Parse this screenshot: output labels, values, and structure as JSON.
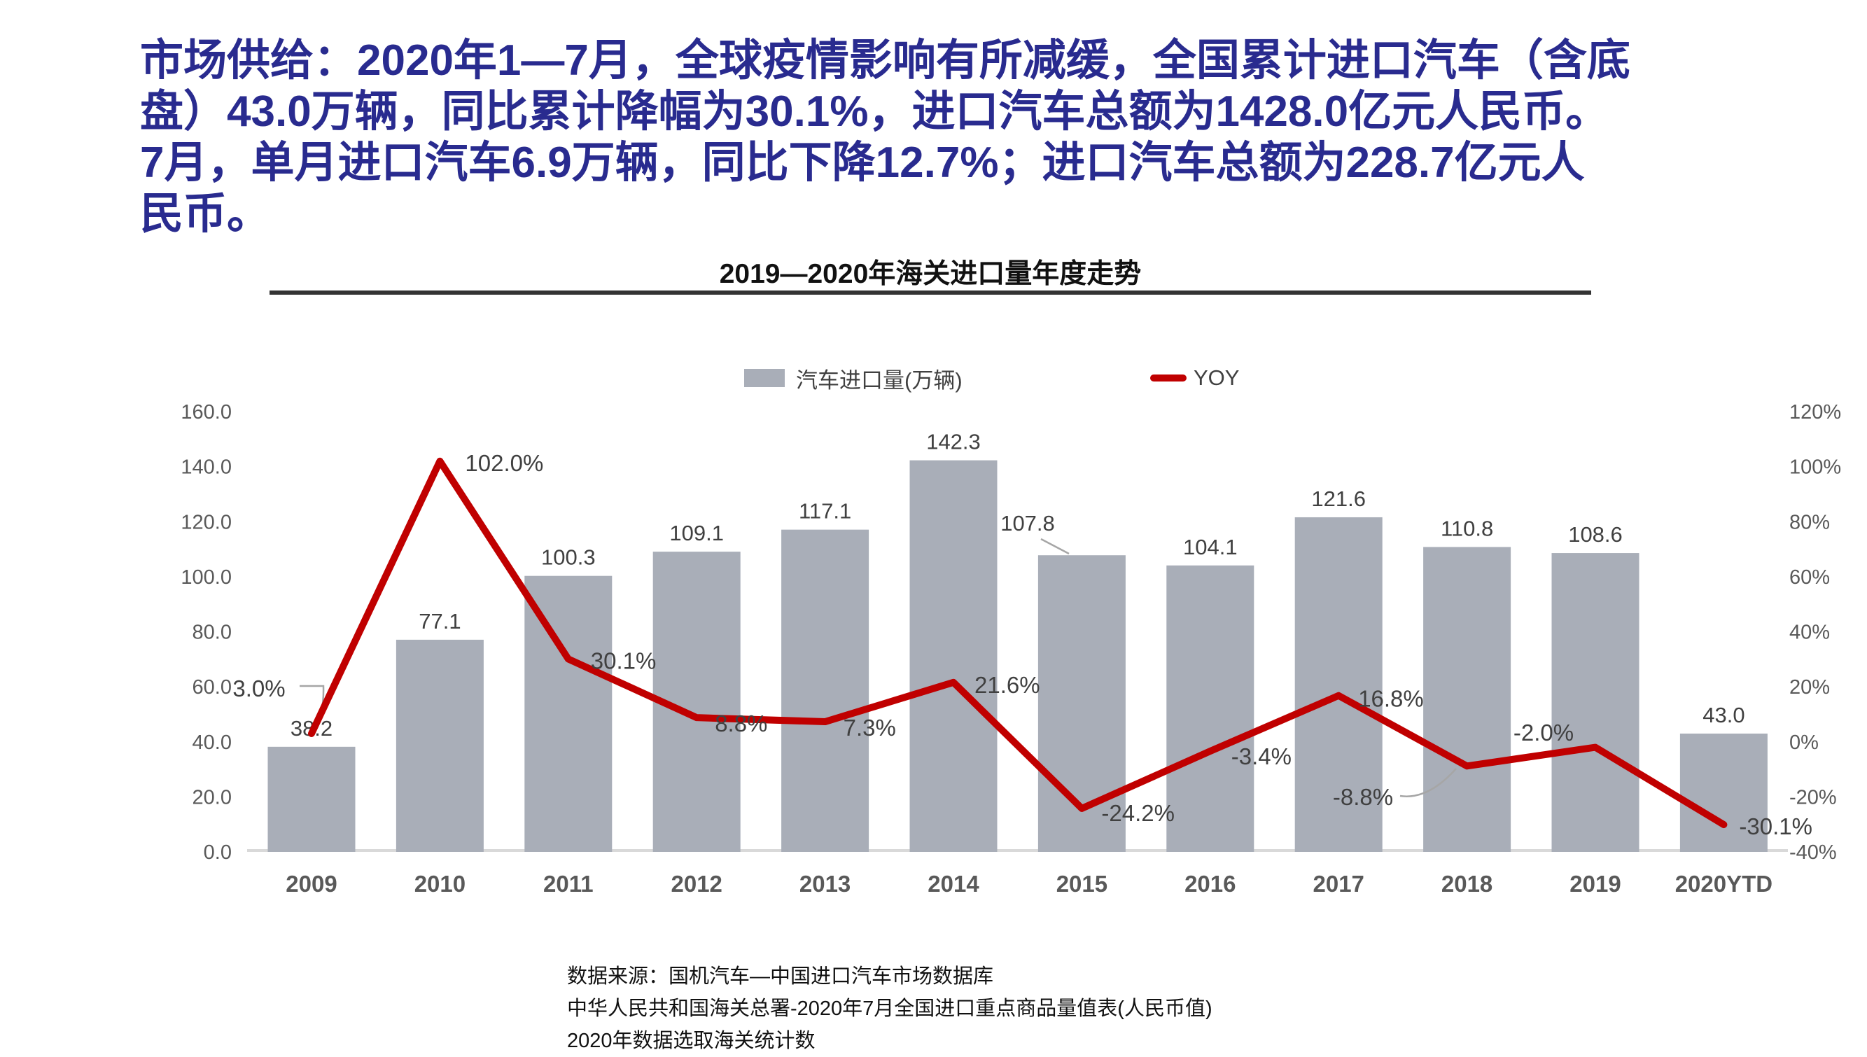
{
  "headline": {
    "color": "#292b8f",
    "lines": [
      "市场供给：2020年1—7月，全球疫情影响有所减缓，全国累计进口汽车（含底",
      "盘）43.0万辆，同比累计降幅为30.1%，进口汽车总额为1428.0亿元人民币。",
      "7月，单月进口汽车6.9万辆，同比下降12.7%；进口汽车总额为228.7亿元人",
      "民币。"
    ]
  },
  "chart_data": {
    "type": "bar",
    "subtype": "bar+line combo, secondary percentage axis",
    "title": "2019—2020年海关进口量年度走势",
    "categories": [
      "2009",
      "2010",
      "2011",
      "2012",
      "2013",
      "2014",
      "2015",
      "2016",
      "2017",
      "2018",
      "2019",
      "2020YTD"
    ],
    "series": [
      {
        "name": "汽车进口量(万辆)",
        "type": "bar",
        "axis": "left",
        "color": "#a9aeb8",
        "values": [
          38.2,
          77.1,
          100.3,
          109.1,
          117.1,
          142.3,
          107.8,
          104.1,
          121.6,
          110.8,
          108.6,
          43.0
        ],
        "labels": [
          "38.2",
          "77.1",
          "100.3",
          "109.1",
          "117.1",
          "142.3",
          "107.8",
          "104.1",
          "121.6",
          "110.8",
          "108.6",
          "43.0"
        ]
      },
      {
        "name": "YOY",
        "type": "line",
        "axis": "right",
        "color": "#c00000",
        "values": [
          3.0,
          102.0,
          30.1,
          8.8,
          7.3,
          21.6,
          -24.2,
          -3.4,
          16.8,
          -8.8,
          -2.0,
          -30.1
        ],
        "labels": [
          "3.0%",
          "102.0%",
          "30.1%",
          "8.8%",
          "7.3%",
          "21.6%",
          "-24.2%",
          "-3.4%",
          "16.8%",
          "-8.8%",
          "-2.0%",
          "-30.1%"
        ]
      }
    ],
    "left_axis": {
      "min": 0,
      "max": 160,
      "step": 20,
      "labels": [
        "0.0",
        "20.0",
        "40.0",
        "60.0",
        "80.0",
        "100.0",
        "120.0",
        "140.0",
        "160.0"
      ]
    },
    "right_axis": {
      "min": -40,
      "max": 120,
      "step": 20,
      "labels": [
        "-40%",
        "-20%",
        "0%",
        "20%",
        "40%",
        "60%",
        "80%",
        "100%",
        "120%"
      ]
    },
    "grid": false,
    "legend_position": "top-center"
  },
  "footer": {
    "lines": [
      "数据来源：国机汽车—中国进口汽车市场数据库",
      "中华人民共和国海关总署-2020年7月全国进口重点商品量值表(人民币值)",
      "2020年数据选取海关统计数"
    ]
  },
  "colors": {
    "bar": "#a9aeb8",
    "line": "#c00000",
    "axis_text": "#595959",
    "data_label": "#404040",
    "axis_line": "#d9d9d9",
    "leader": "#a6a6a6",
    "headline": "#292b8f",
    "underline": "#333333"
  }
}
